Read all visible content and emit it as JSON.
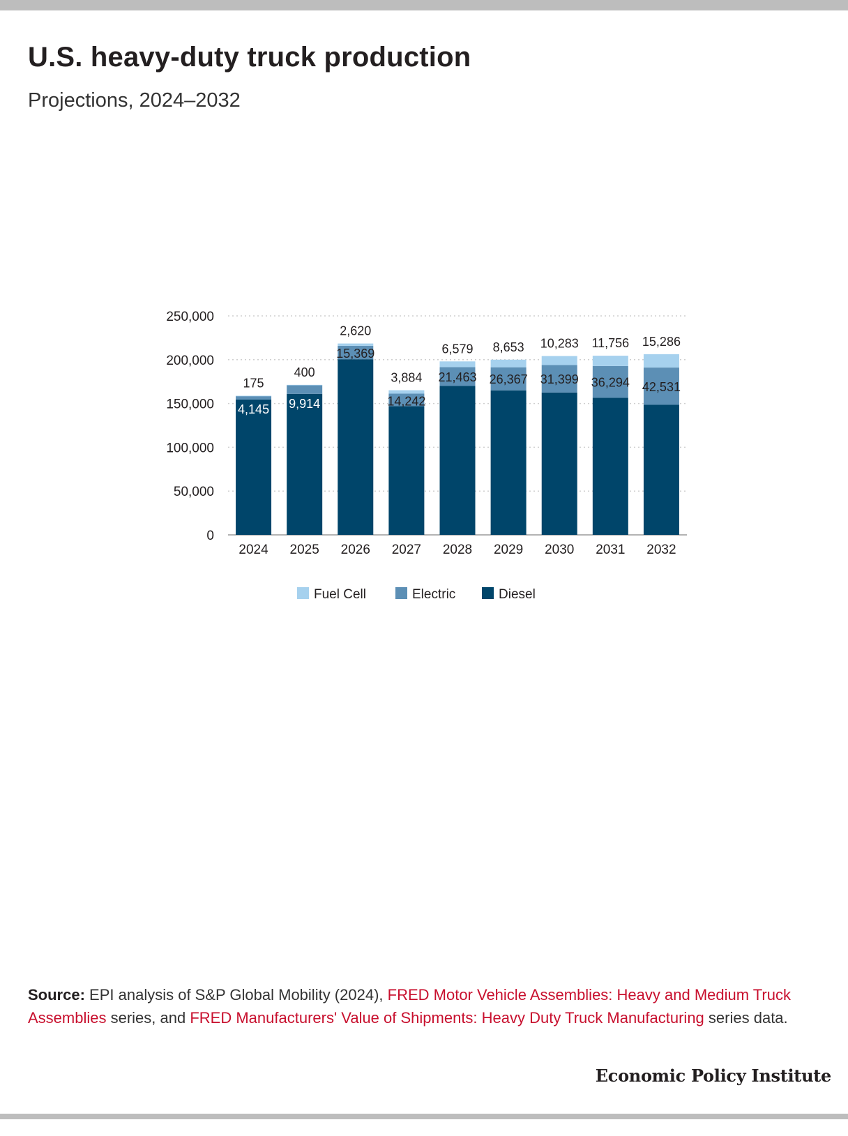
{
  "header": {
    "title": "U.S. heavy-duty truck production",
    "subtitle": "Projections, 2024–2032"
  },
  "chart_data": {
    "type": "bar",
    "stacked": true,
    "title": "U.S. heavy-duty truck production",
    "subtitle": "Projections, 2024–2032",
    "categories": [
      "2024",
      "2025",
      "2026",
      "2027",
      "2028",
      "2029",
      "2030",
      "2031",
      "2032"
    ],
    "series": [
      {
        "name": "Diesel",
        "color": "#00456a",
        "values": [
          154500,
          161000,
          200500,
          147000,
          170000,
          165000,
          162500,
          156500,
          148500
        ],
        "labels": [
          "",
          "",
          "",
          "",
          "",
          "",
          "",
          "",
          ""
        ]
      },
      {
        "name": "Electric",
        "color": "#5c8fb5",
        "values": [
          4145,
          9914,
          15369,
          14242,
          21463,
          26367,
          31399,
          36294,
          42531
        ],
        "labels": [
          "4,145",
          "9,914",
          "15,369",
          "14,242",
          "21,463",
          "26,367",
          "31,399",
          "36,294",
          "42,531"
        ]
      },
      {
        "name": "Fuel Cell",
        "color": "#a6d1ee",
        "values": [
          175,
          400,
          2620,
          3884,
          6579,
          8653,
          10283,
          11756,
          15286
        ],
        "labels": [
          "175",
          "400",
          "2,620",
          "3,884",
          "6,579",
          "8,653",
          "10,283",
          "11,756",
          "15,286"
        ]
      }
    ],
    "y_ticks": [
      "0",
      "50,000",
      "100,000",
      "150,000",
      "200,000",
      "250,000"
    ],
    "ylim": [
      0,
      250000
    ],
    "grid": true,
    "legend": {
      "position": "bottom",
      "entries": [
        "Fuel Cell",
        "Electric",
        "Diesel"
      ]
    }
  },
  "source": {
    "label": "Source:",
    "text1": "EPI analysis of S&P Global Mobility (2024),",
    "link1": "FRED Motor Vehicle Assemblies: Heavy and Medium Truck Assemblies",
    "text2": "series, and",
    "link2": "FRED Manufacturers' Value of Shipments: Heavy Duty Truck Manufacturing",
    "text3": "series data."
  },
  "brand": "Economic Policy Institute"
}
